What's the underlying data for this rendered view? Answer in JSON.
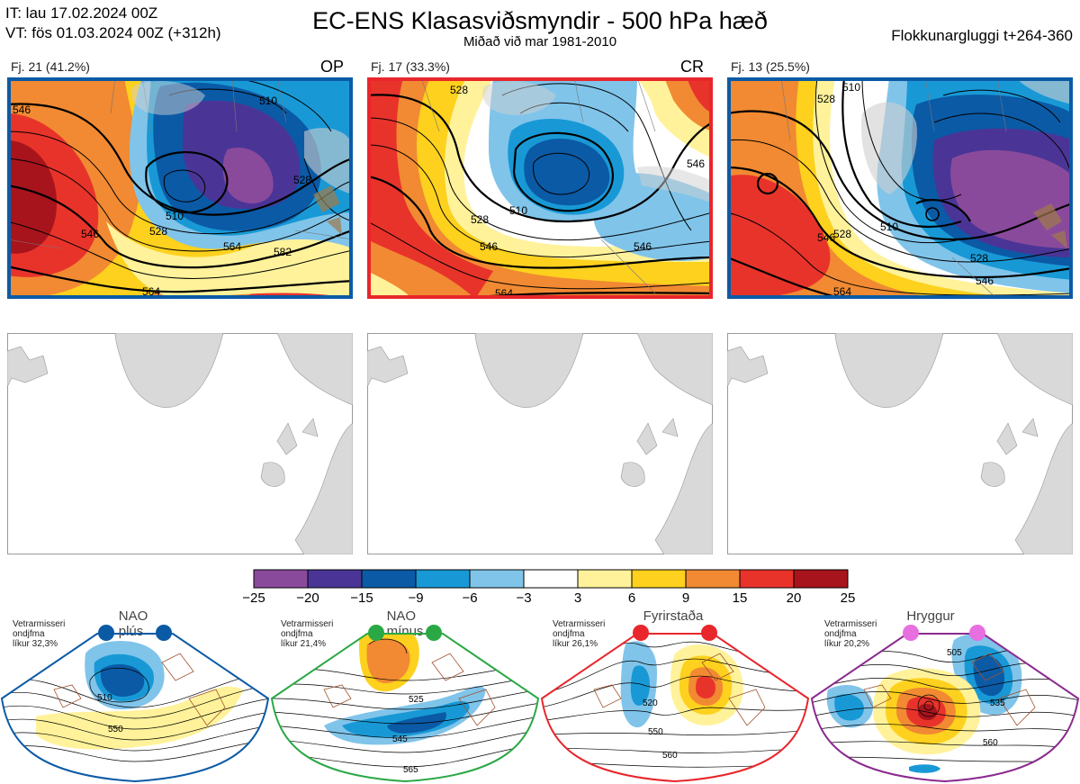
{
  "header": {
    "it_line": "IT: lau 17.02.2024 00Z",
    "vt_line": "VT: fös 01.03.2024 00Z  (+312h)",
    "title": "EC-ENS Klasasviðsmyndir - 500 hPa hæð",
    "subtitle": "Miðað við mar 1981-2010",
    "window": "Flokkunargluggi t+264-360"
  },
  "clusters": [
    {
      "label": "Fj. 21 (41.2%)",
      "tag": "OP",
      "border": "#0b5aa6",
      "contours": [
        {
          "label": "546"
        },
        {
          "label": "510"
        },
        {
          "label": "528"
        },
        {
          "label": "546"
        },
        {
          "label": "564"
        },
        {
          "label": "582"
        },
        {
          "label": "564"
        },
        {
          "label": "510"
        },
        {
          "label": "528"
        }
      ]
    },
    {
      "label": "Fj. 17 (33.3%)",
      "tag": "CR",
      "border": "#e8262b",
      "contours": [
        {
          "label": "528"
        },
        {
          "label": "510"
        },
        {
          "label": "546"
        },
        {
          "label": "528"
        },
        {
          "label": "546"
        },
        {
          "label": "564"
        },
        {
          "label": "546"
        }
      ]
    },
    {
      "label": "Fj. 13 (25.5%)",
      "tag": "",
      "border": "#0b5aa6",
      "contours": [
        {
          "label": "510"
        },
        {
          "label": "528"
        },
        {
          "label": "510"
        },
        {
          "label": "546"
        },
        {
          "label": "528"
        },
        {
          "label": "546"
        },
        {
          "label": "564"
        },
        {
          "label": "528"
        }
      ]
    }
  ],
  "colorbar": {
    "ticks": [
      "−25",
      "−20",
      "−15",
      "−9",
      "−6",
      "−3",
      "3",
      "6",
      "9",
      "15",
      "20",
      "25"
    ],
    "colors": [
      "#8a4a9c",
      "#4a3596",
      "#0b5aa6",
      "#1899d6",
      "#80c4ea",
      "#ffffff",
      "#fff29a",
      "#fdd11d",
      "#f18a32",
      "#e8332b",
      "#a8141c"
    ]
  },
  "regimes": [
    {
      "title": "NAO plús",
      "info": [
        "Vetrarmisseri",
        "ondjfma",
        "líkur 32,3%"
      ],
      "border": "#0b5aa6",
      "dot": "#0b5aa6",
      "labels": [
        {
          "label": "510"
        },
        {
          "label": "550"
        }
      ]
    },
    {
      "title": "NAO mínus",
      "info": [
        "Vetrarmisseri",
        "ondjfma",
        "líkur 21,4%"
      ],
      "border": "#2aa845",
      "dot": "#2aa845",
      "labels": [
        {
          "label": "525"
        },
        {
          "label": "545"
        },
        {
          "label": "565"
        }
      ]
    },
    {
      "title": "Fyrirstaða",
      "info": [
        "Vetrarmisseri",
        "ondjfma",
        "líkur 26,1%"
      ],
      "border": "#e8262b",
      "dot": "#e8262b",
      "labels": [
        {
          "label": "520"
        },
        {
          "label": "550"
        },
        {
          "label": "560"
        }
      ]
    },
    {
      "title": "Hryggur",
      "info": [
        "Vetrarmisseri",
        "ondjfma",
        "líkur 20,2%"
      ],
      "border": "#8b2a8e",
      "dot": "#e86fe0",
      "labels": [
        {
          "label": "505"
        },
        {
          "label": "535"
        },
        {
          "label": "560"
        }
      ]
    }
  ]
}
